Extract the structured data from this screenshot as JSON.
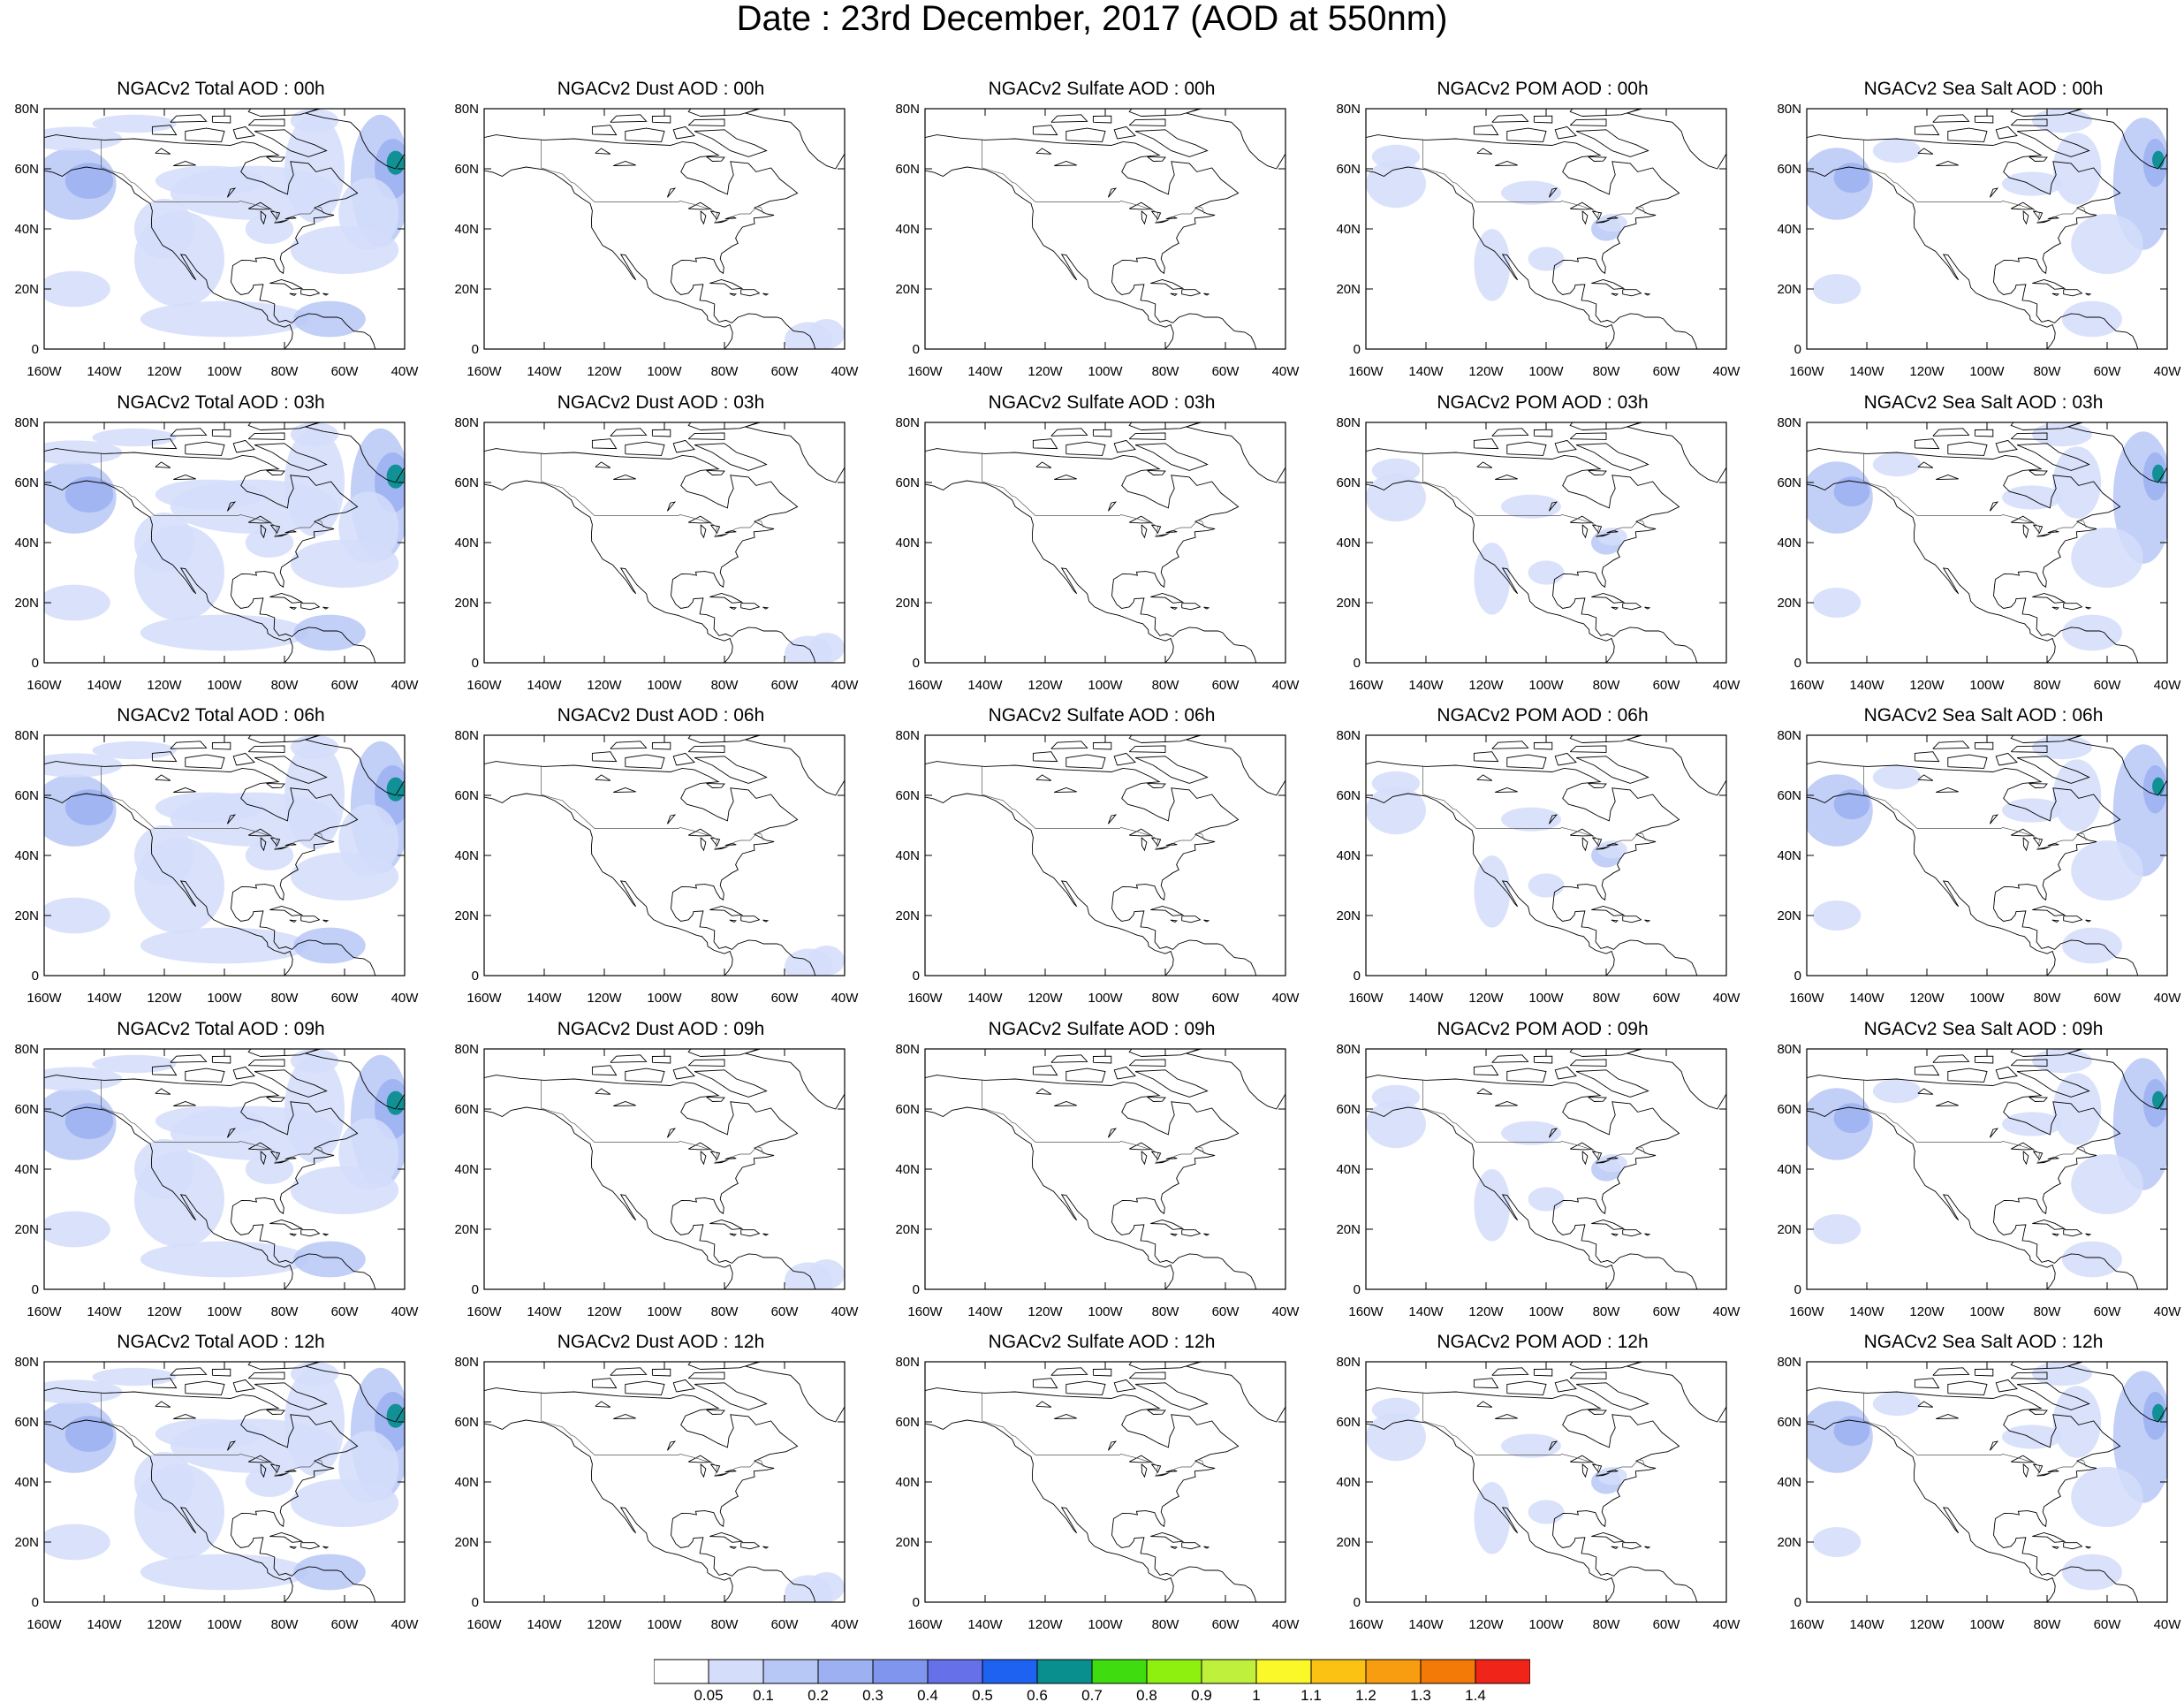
{
  "figure": {
    "title": "Date : 23rd December, 2017 (AOD at 550nm)"
  },
  "map_axes": {
    "lon_labels": [
      "160W",
      "140W",
      "120W",
      "100W",
      "80W",
      "60W",
      "40W"
    ],
    "lat_labels": [
      "0",
      "20N",
      "40N",
      "60N",
      "80N"
    ],
    "lon_range": [
      -160,
      -40
    ],
    "lat_range": [
      0,
      80
    ]
  },
  "panels": [
    [
      {
        "title": "NGACv2 Total AOD : 00h",
        "species": "total"
      },
      {
        "title": "NGACv2 Dust AOD : 00h",
        "species": "dust"
      },
      {
        "title": "NGACv2 Sulfate AOD : 00h",
        "species": "sulfate"
      },
      {
        "title": "NGACv2 POM AOD : 00h",
        "species": "pom"
      },
      {
        "title": "NGACv2 Sea Salt AOD : 00h",
        "species": "seasalt"
      }
    ],
    [
      {
        "title": "NGACv2 Total AOD : 03h",
        "species": "total"
      },
      {
        "title": "NGACv2 Dust AOD : 03h",
        "species": "dust"
      },
      {
        "title": "NGACv2 Sulfate AOD : 03h",
        "species": "sulfate"
      },
      {
        "title": "NGACv2 POM AOD : 03h",
        "species": "pom"
      },
      {
        "title": "NGACv2 Sea Salt AOD : 03h",
        "species": "seasalt"
      }
    ],
    [
      {
        "title": "NGACv2 Total AOD : 06h",
        "species": "total"
      },
      {
        "title": "NGACv2 Dust AOD : 06h",
        "species": "dust"
      },
      {
        "title": "NGACv2 Sulfate AOD : 06h",
        "species": "sulfate"
      },
      {
        "title": "NGACv2 POM AOD : 06h",
        "species": "pom"
      },
      {
        "title": "NGACv2 Sea Salt AOD : 06h",
        "species": "seasalt"
      }
    ],
    [
      {
        "title": "NGACv2 Total AOD : 09h",
        "species": "total"
      },
      {
        "title": "NGACv2 Dust AOD : 09h",
        "species": "dust"
      },
      {
        "title": "NGACv2 Sulfate AOD : 09h",
        "species": "sulfate"
      },
      {
        "title": "NGACv2 POM AOD : 09h",
        "species": "pom"
      },
      {
        "title": "NGACv2 Sea Salt  AOD : 09h",
        "species": "seasalt"
      }
    ],
    [
      {
        "title": "NGACv2 Total AOD  : 12h",
        "species": "total"
      },
      {
        "title": "NGACv2 Dust AOD : 12h",
        "species": "dust"
      },
      {
        "title": "NGACv2 Sulfate AOD : 12h",
        "species": "sulfate"
      },
      {
        "title": "NGACv2 POM  AOD : 12h",
        "species": "pom"
      },
      {
        "title": "NGACv2 Sea Salt  AOD : 12h",
        "species": "seasalt"
      }
    ]
  ],
  "colorbar": {
    "labels": [
      "0.05",
      "0.1",
      "0.2",
      "0.3",
      "0.4",
      "0.5",
      "0.6",
      "0.7",
      "0.8",
      "0.9",
      "1",
      "1.1",
      "1.2",
      "1.3",
      "1.4"
    ],
    "colors": [
      "#ffffff",
      "#d4ddfa",
      "#b7c7f6",
      "#9cb0f2",
      "#8096ee",
      "#6670e8",
      "#1e62f2",
      "#0a8f8f",
      "#3fdc10",
      "#8ef00e",
      "#bff03c",
      "#fbf82a",
      "#fbc214",
      "#f89c10",
      "#f47a08",
      "#f02418"
    ]
  }
}
